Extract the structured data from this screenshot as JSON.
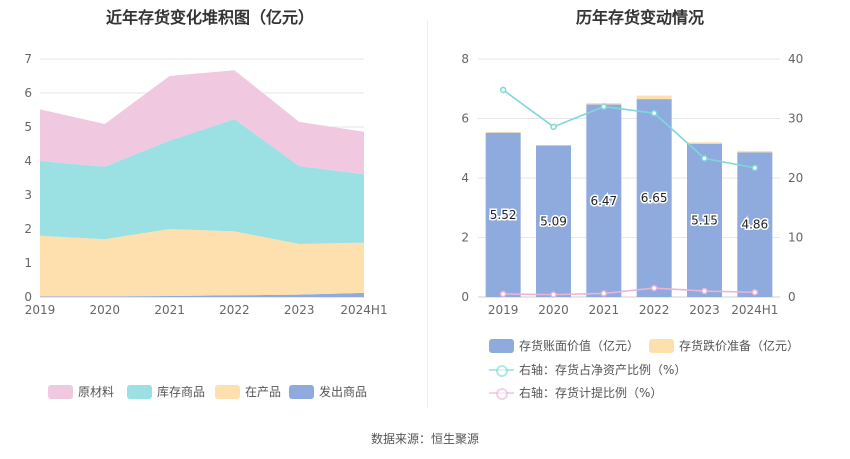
{
  "left_chart": {
    "title": "近年存货变化堆积图（亿元）",
    "chart_data": {
      "type": "area",
      "stacked": true,
      "categories": [
        "2019",
        "2020",
        "2021",
        "2022",
        "2023",
        "2024H1"
      ],
      "series": [
        {
          "name": "发出商品",
          "color": "#8faadc",
          "values": [
            0.02,
            0.02,
            0.03,
            0.05,
            0.07,
            0.12
          ]
        },
        {
          "name": "在产品",
          "color": "#fde0ae",
          "values": [
            1.78,
            1.68,
            1.97,
            1.88,
            1.49,
            1.48
          ]
        },
        {
          "name": "库存商品",
          "color": "#9be0e3",
          "values": [
            2.2,
            2.13,
            2.6,
            3.3,
            2.29,
            2.01
          ]
        },
        {
          "name": "原材料",
          "color": "#f0c8e0",
          "values": [
            1.52,
            1.26,
            1.9,
            1.44,
            1.3,
            1.25
          ]
        }
      ],
      "y_ticks": [
        "0",
        "1",
        "2",
        "3",
        "4",
        "5",
        "6",
        "7"
      ],
      "ylim": [
        0,
        7
      ]
    },
    "legend_order": [
      "原材料",
      "库存商品",
      "在产品",
      "发出商品"
    ]
  },
  "right_chart": {
    "title": "历年存货变动情况",
    "chart_data": {
      "type": "bar",
      "categories": [
        "2019",
        "2020",
        "2021",
        "2022",
        "2023",
        "2024H1"
      ],
      "series": [
        {
          "name": "存货账面价值（亿元）",
          "axis": "left",
          "color": "#8faadc",
          "values": [
            5.52,
            5.09,
            6.47,
            6.65,
            5.15,
            4.86
          ],
          "labels": [
            "5.52",
            "5.09",
            "6.47",
            "6.65",
            "5.15",
            "4.86"
          ]
        },
        {
          "name": "存货跌价准备（亿元）",
          "axis": "left",
          "color": "#fde0ae",
          "values": [
            0.03,
            0.02,
            0.05,
            0.12,
            0.05,
            0.05
          ]
        },
        {
          "name": "右轴：存货占净资产比例（%）",
          "axis": "right",
          "type": "line",
          "color": "#7fd7dc",
          "values": [
            34.8,
            28.6,
            32.0,
            30.9,
            23.3,
            21.7
          ]
        },
        {
          "name": "右轴：存货计提比例（%）",
          "axis": "right",
          "type": "line",
          "color": "#e8b4d8",
          "values": [
            0.5,
            0.4,
            0.6,
            1.5,
            1.0,
            0.8
          ]
        }
      ],
      "y_left_ticks": [
        "0",
        "2",
        "4",
        "6",
        "8"
      ],
      "y_left_lim": [
        0,
        8
      ],
      "y_right_ticks": [
        "0",
        "10",
        "20",
        "30",
        "40"
      ],
      "y_right_lim": [
        0,
        40
      ]
    }
  },
  "source": "数据来源：恒生聚源"
}
